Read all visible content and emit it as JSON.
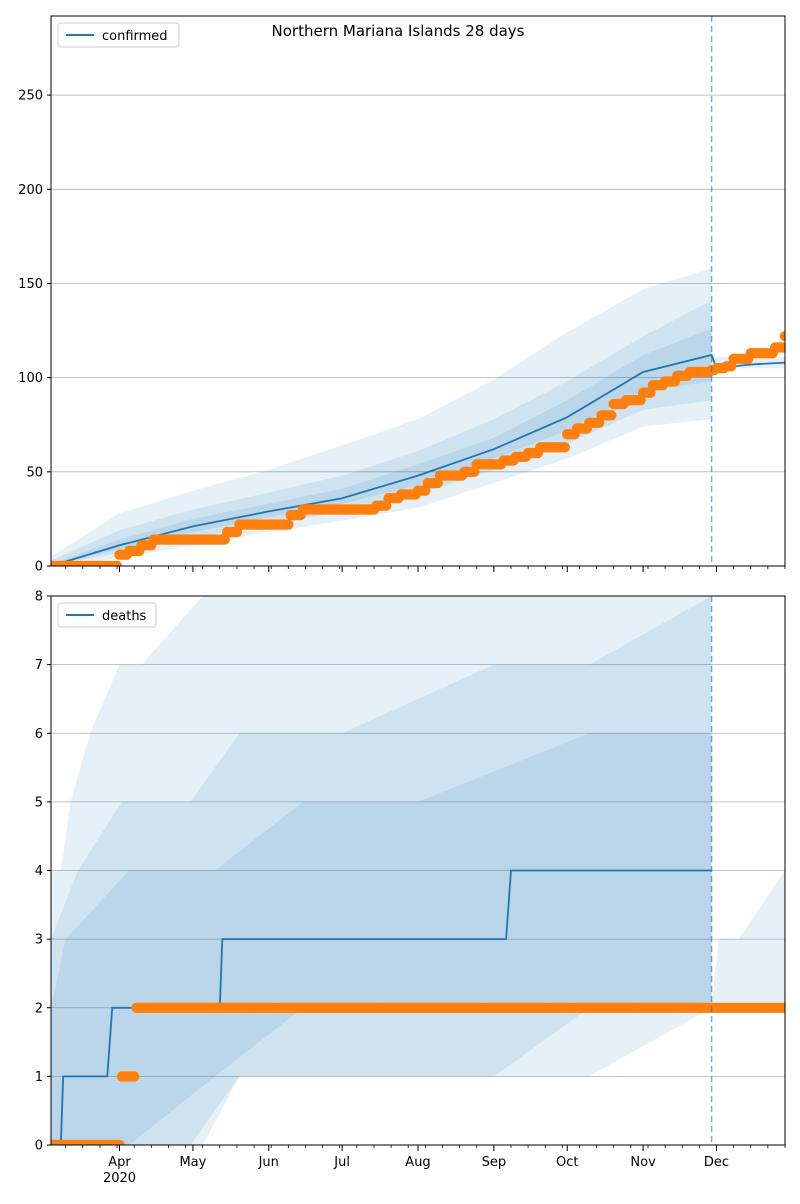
{
  "title": "Northern Mariana Islands 28 days",
  "colors": {
    "model_line": "#1f77b4",
    "observed_points": "#ff7f0e",
    "band": "#1f77b4",
    "grid": "#b0b0b0",
    "forecast_marker": "#1f77b4"
  },
  "chart_data": [
    {
      "type": "line",
      "title": "Northern Mariana Islands 28 days",
      "legend": [
        "confirmed"
      ],
      "legend_position": "upper-left",
      "grid": "y",
      "xlim": [
        "2020-03-04",
        "2020-12-29"
      ],
      "ylim": [
        0,
        292
      ],
      "yticks": [
        0,
        50,
        100,
        150,
        200,
        250
      ],
      "x_tick_labels": [
        "Apr",
        "May",
        "Jun",
        "Jul",
        "Aug",
        "Sep",
        "Oct",
        "Nov",
        "Dec"
      ],
      "x_year_label": "2020",
      "forecast_start": "2020-11-29",
      "series": [
        {
          "name": "confirmed",
          "style": "line",
          "x": [
            "2020-03-04",
            "2020-04-01",
            "2020-05-01",
            "2020-06-01",
            "2020-07-01",
            "2020-08-01",
            "2020-09-01",
            "2020-10-01",
            "2020-11-01",
            "2020-11-29",
            "2020-12-01",
            "2020-12-15",
            "2020-12-29"
          ],
          "values": [
            0,
            11,
            21,
            29,
            36,
            48,
            62,
            79,
            103,
            112,
            105,
            107,
            108
          ]
        },
        {
          "style": "points",
          "x": [
            "2020-03-04",
            "2020-03-31",
            "2020-04-01",
            "2020-04-05",
            "2020-04-10",
            "2020-04-15",
            "2020-05-10",
            "2020-05-15",
            "2020-05-20",
            "2020-06-05",
            "2020-06-10",
            "2020-06-15",
            "2020-06-20",
            "2020-07-05",
            "2020-07-15",
            "2020-07-20",
            "2020-07-25",
            "2020-08-01",
            "2020-08-05",
            "2020-08-10",
            "2020-08-20",
            "2020-08-25",
            "2020-09-01",
            "2020-09-05",
            "2020-09-10",
            "2020-09-15",
            "2020-09-20",
            "2020-10-01",
            "2020-10-05",
            "2020-10-10",
            "2020-10-15",
            "2020-10-20",
            "2020-10-25",
            "2020-11-01",
            "2020-11-05",
            "2020-11-10",
            "2020-11-15",
            "2020-11-20",
            "2020-11-29",
            "2020-12-01",
            "2020-12-05",
            "2020-12-08",
            "2020-12-15",
            "2020-12-20",
            "2020-12-25",
            "2020-12-29"
          ],
          "values": [
            0,
            0,
            6,
            8,
            11,
            14,
            14,
            18,
            22,
            22,
            27,
            30,
            30,
            30,
            32,
            36,
            38,
            40,
            44,
            48,
            50,
            54,
            54,
            56,
            58,
            60,
            63,
            70,
            73,
            76,
            80,
            86,
            88,
            92,
            96,
            98,
            101,
            103,
            104,
            105,
            106,
            110,
            113,
            113,
            116,
            122
          ]
        }
      ],
      "bands": [
        {
          "x": [
            "2020-03-04",
            "2020-04-01",
            "2020-05-01",
            "2020-06-01",
            "2020-07-01",
            "2020-08-01",
            "2020-09-01",
            "2020-10-01",
            "2020-11-01",
            "2020-11-29"
          ],
          "lower": [
            0,
            4,
            11,
            18,
            24,
            31,
            44,
            57,
            74,
            78
          ],
          "upper": [
            5,
            28,
            40,
            51,
            64,
            78,
            99,
            124,
            147,
            158
          ]
        },
        {
          "x": [
            "2020-03-04",
            "2020-04-01",
            "2020-05-01",
            "2020-06-01",
            "2020-07-01",
            "2020-08-01",
            "2020-09-01",
            "2020-10-01",
            "2020-11-01",
            "2020-11-29"
          ],
          "lower": [
            0,
            7,
            15,
            22,
            29,
            38,
            51,
            65,
            83,
            88
          ],
          "upper": [
            3,
            19,
            30,
            39,
            48,
            61,
            78,
            98,
            122,
            141
          ]
        },
        {
          "x": [
            "2020-03-04",
            "2020-04-01",
            "2020-05-01",
            "2020-06-01",
            "2020-07-01",
            "2020-08-01",
            "2020-09-01",
            "2020-10-01",
            "2020-11-01",
            "2020-11-29"
          ],
          "lower": [
            0,
            9,
            18,
            26,
            33,
            43,
            57,
            72,
            93,
            98
          ],
          "upper": [
            1,
            14,
            25,
            33,
            41,
            54,
            68,
            88,
            112,
            126
          ]
        },
        {
          "x": [
            "2020-11-29",
            "2020-12-29"
          ],
          "lower": [
            105,
            105
          ],
          "upper": [
            111,
            111
          ]
        }
      ]
    },
    {
      "type": "line",
      "legend": [
        "deaths"
      ],
      "legend_position": "upper-left",
      "grid": "y",
      "xlim": [
        "2020-03-04",
        "2020-12-29"
      ],
      "ylim": [
        0,
        8
      ],
      "yticks": [
        0,
        1,
        2,
        3,
        4,
        5,
        6,
        7,
        8
      ],
      "x_tick_labels": [
        "Apr",
        "May",
        "Jun",
        "Jul",
        "Aug",
        "Sep",
        "Oct",
        "Nov",
        "Dec"
      ],
      "x_year_label": "2020",
      "forecast_start": "2020-11-29",
      "series": [
        {
          "name": "deaths",
          "style": "step",
          "x": [
            "2020-03-04",
            "2020-03-08",
            "2020-03-09",
            "2020-03-27",
            "2020-03-29",
            "2020-05-12",
            "2020-05-13",
            "2020-09-06",
            "2020-09-08",
            "2020-11-29"
          ],
          "values": [
            0,
            0,
            1,
            1,
            2,
            2,
            3,
            3,
            4,
            4
          ]
        },
        {
          "style": "points",
          "x": [
            "2020-03-04",
            "2020-04-01",
            "2020-04-02",
            "2020-04-07",
            "2020-04-08",
            "2020-05-01",
            "2020-06-01",
            "2020-07-01",
            "2020-08-01",
            "2020-09-01",
            "2020-10-01",
            "2020-11-01",
            "2020-12-01",
            "2020-12-29"
          ],
          "values": [
            0,
            0,
            1,
            1,
            2,
            2,
            2,
            2,
            2,
            2,
            2,
            2,
            2,
            2
          ]
        }
      ],
      "bands": [
        {
          "x": [
            "2020-03-04",
            "2020-03-08",
            "2020-03-12",
            "2020-03-20",
            "2020-04-01",
            "2020-04-10",
            "2020-05-05",
            "2020-05-20",
            "2020-09-01",
            "2020-10-10",
            "2020-11-29"
          ],
          "lower": [
            0,
            0,
            0,
            0,
            0,
            0,
            0,
            1,
            1,
            1,
            2
          ],
          "upper": [
            4,
            4,
            5,
            6,
            7,
            7,
            8,
            8,
            8,
            8,
            8
          ]
        },
        {
          "x": [
            "2020-03-04",
            "2020-03-15",
            "2020-04-02",
            "2020-04-30",
            "2020-05-20",
            "2020-07-01",
            "2020-09-01",
            "2020-10-10",
            "2020-11-29"
          ],
          "lower": [
            0,
            0,
            0,
            0,
            1,
            1,
            1,
            2,
            2
          ],
          "upper": [
            3,
            4,
            5,
            5,
            6,
            6,
            7,
            7,
            8
          ]
        },
        {
          "x": [
            "2020-03-04",
            "2020-03-10",
            "2020-04-05",
            "2020-05-10",
            "2020-06-15",
            "2020-08-01",
            "2020-10-10",
            "2020-11-29"
          ],
          "lower": [
            0,
            0,
            0,
            1,
            2,
            2,
            2,
            2
          ],
          "upper": [
            2,
            3,
            4,
            4,
            5,
            5,
            6,
            6
          ]
        },
        {
          "x": [
            "2020-11-29",
            "2020-12-02",
            "2020-12-10",
            "2020-12-29"
          ],
          "lower": [
            2,
            2,
            2,
            2
          ],
          "upper": [
            2,
            3,
            3,
            4
          ]
        }
      ]
    }
  ]
}
